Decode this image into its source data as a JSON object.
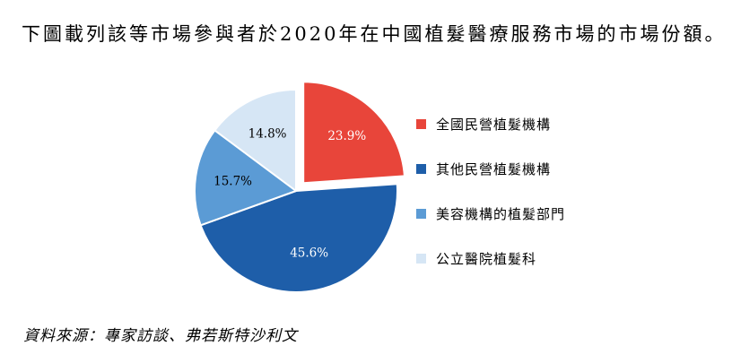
{
  "caption": "下圖載列該等市場參與者於2020年在中國植髮醫療服務市場的市場份額。",
  "source": "資料來源：專家訪談、弗若斯特沙利文",
  "chart_data": {
    "type": "pie",
    "title": "2020年在中國植髮醫療服務市場的市場份額",
    "unit": "%",
    "start_angle_deg": -90,
    "direction": "clockwise",
    "legend_position": "right",
    "slices": [
      {
        "label": "全國民營植髮機構",
        "value": 23.9,
        "pct_label": "23.9%",
        "color": "#E8453A",
        "label_color": "#ffffff",
        "explode": true
      },
      {
        "label": "其他民營植髮機構",
        "value": 45.6,
        "pct_label": "45.6%",
        "color": "#1E5EA9",
        "label_color": "#ffffff",
        "explode": false
      },
      {
        "label": "美容機構的植髮部門",
        "value": 15.7,
        "pct_label": "15.7%",
        "color": "#5B9BD5",
        "label_color": "#000000",
        "explode": false
      },
      {
        "label": "公立醫院植髮科",
        "value": 14.8,
        "pct_label": "14.8%",
        "color": "#D6E6F5",
        "label_color": "#000000",
        "explode": false
      }
    ]
  }
}
